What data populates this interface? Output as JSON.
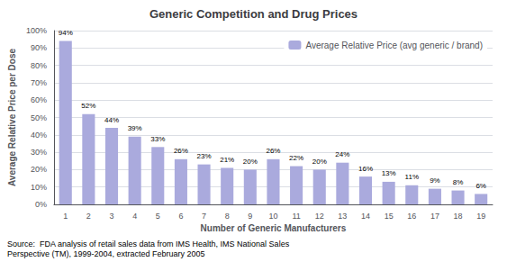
{
  "chart_data": {
    "type": "bar",
    "title": "Generic Competition and Drug Prices",
    "xlabel": "Number of Generic Manufacturers",
    "ylabel": "Average Relative Price per Dose",
    "categories": [
      "1",
      "2",
      "3",
      "4",
      "5",
      "6",
      "7",
      "8",
      "9",
      "10",
      "11",
      "12",
      "13",
      "14",
      "15",
      "16",
      "17",
      "18",
      "19"
    ],
    "series": [
      {
        "name": "Average Relative Price (avg generic / brand)",
        "color": "#aaaadd",
        "values": [
          94,
          52,
          44,
          39,
          33,
          26,
          23,
          21,
          20,
          26,
          22,
          20,
          24,
          16,
          13,
          11,
          9,
          8,
          6
        ],
        "value_labels": [
          "94%",
          "52%",
          "44%",
          "39%",
          "33%",
          "26%",
          "23%",
          "21%",
          "20%",
          "26%",
          "22%",
          "20%",
          "24%",
          "16%",
          "13%",
          "11%",
          "9%",
          "8%",
          "6%"
        ]
      }
    ],
    "ylim": [
      0,
      100
    ],
    "yticks": [
      {
        "value": 0,
        "label": "0%"
      },
      {
        "value": 10,
        "label": "10%"
      },
      {
        "value": 20,
        "label": "20%"
      },
      {
        "value": 30,
        "label": "30%"
      },
      {
        "value": 40,
        "label": "40%"
      },
      {
        "value": 50,
        "label": "50%"
      },
      {
        "value": 60,
        "label": "60%"
      },
      {
        "value": 70,
        "label": "70%"
      },
      {
        "value": 80,
        "label": "80%"
      },
      {
        "value": 90,
        "label": "90%"
      },
      {
        "value": 100,
        "label": "100%"
      }
    ],
    "grid": true,
    "legend": "upper right",
    "data_labels": true,
    "annotations": [
      "Source:  FDA analysis of retail sales data from IMS Health, IMS National Sales\nPerspective (TM), 1999-2004, extracted February 2005"
    ]
  }
}
